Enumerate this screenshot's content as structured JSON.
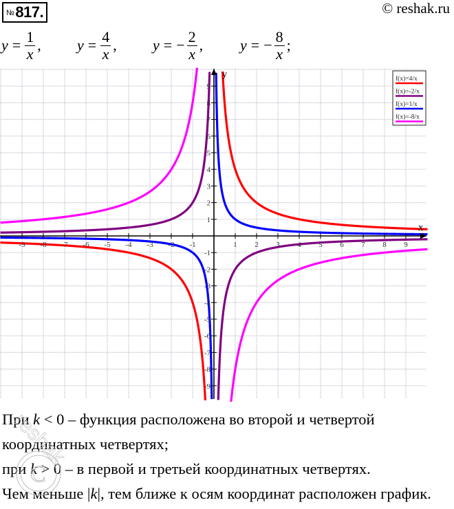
{
  "header": {
    "number_prefix": "№",
    "number": "817.",
    "copyright": "© reshak.ru"
  },
  "formulas": [
    {
      "lhs": "y",
      "sign": "",
      "numerator": "1",
      "denominator": "x",
      "sep": ","
    },
    {
      "lhs": "y",
      "sign": "",
      "numerator": "4",
      "denominator": "x",
      "sep": ","
    },
    {
      "lhs": "y",
      "sign": "−",
      "numerator": "2",
      "denominator": "x",
      "sep": ","
    },
    {
      "lhs": "y",
      "sign": "−",
      "numerator": "8",
      "denominator": "x",
      "sep": ";"
    }
  ],
  "chart_data": {
    "type": "line",
    "title": "",
    "xlabel": "x",
    "ylabel": "y",
    "xlim": [
      -10,
      10
    ],
    "ylim": [
      -10,
      10
    ],
    "grid": true,
    "legend_position": "top-right",
    "x_ticks": [
      -9,
      -8,
      -7,
      -6,
      -5,
      -4,
      -3,
      -2,
      -1,
      1,
      2,
      3,
      4,
      5,
      6,
      7,
      8,
      9
    ],
    "y_ticks": [
      -9,
      -8,
      -7,
      -6,
      -5,
      -4,
      -3,
      -2,
      -1,
      1,
      2,
      3,
      4,
      5,
      6,
      7,
      8,
      9
    ],
    "x_tick_labels": [
      "-9",
      "-8",
      "-7",
      "-6",
      "-5",
      "-4",
      "-3",
      "-2",
      "-1",
      "1",
      "2",
      "3",
      "4",
      "5",
      "6",
      "7",
      "8",
      "9"
    ],
    "y_tick_labels": [
      "-9",
      "-8",
      "-7",
      "-6",
      "-5",
      "-4",
      "-3",
      "-2",
      "-1",
      "1",
      "2",
      "3",
      "4",
      "5",
      "6",
      "7",
      "8",
      "9"
    ],
    "series": [
      {
        "name": "f(x)=4/x",
        "k": 4,
        "color": "#ff0000",
        "x": [
          -10,
          -8,
          -5,
          -4,
          -2,
          -1,
          -0.5,
          0.5,
          1,
          2,
          4,
          5,
          8,
          10
        ],
        "values": [
          -0.4,
          -0.5,
          -0.8,
          -1,
          -2,
          -4,
          -8,
          8,
          4,
          2,
          1,
          0.8,
          0.5,
          0.4
        ]
      },
      {
        "name": "f(x)=-2/x",
        "k": -2,
        "color": "#800080",
        "x": [
          -10,
          -8,
          -5,
          -4,
          -2,
          -1,
          -0.5,
          -0.25,
          0.25,
          0.5,
          1,
          2,
          4,
          5,
          8,
          10
        ],
        "values": [
          0.2,
          0.25,
          0.4,
          0.5,
          1,
          2,
          4,
          8,
          -8,
          -4,
          -2,
          -1,
          -0.5,
          -0.4,
          -0.25,
          -0.2
        ]
      },
      {
        "name": "f(x)=1/x",
        "k": 1,
        "color": "#0000ff",
        "x": [
          -10,
          -5,
          -2,
          -1,
          -0.5,
          -0.125,
          0.125,
          0.5,
          1,
          2,
          5,
          10
        ],
        "values": [
          -0.1,
          -0.2,
          -0.5,
          -1,
          -2,
          -8,
          8,
          2,
          1,
          0.5,
          0.2,
          0.1
        ]
      },
      {
        "name": "f(x)=-8/x",
        "k": -8,
        "color": "#ff00ff",
        "x": [
          -10,
          -8,
          -5,
          -4,
          -2,
          -1,
          1,
          2,
          4,
          5,
          8,
          10
        ],
        "values": [
          0.8,
          1,
          1.6,
          2,
          4,
          8,
          -8,
          -4,
          -2,
          -1.6,
          -1,
          -0.8
        ]
      }
    ]
  },
  "conclusion": {
    "line1_a": "При ",
    "line1_k": "k",
    "line1_b": " < 0 – функция расположена во второй и четвертой",
    "line2": "координатных четвертях;",
    "line3_a": "при ",
    "line3_k": "k",
    "line3_b": " > 0 – в первой и третьей координатных четвертях.",
    "line4_a": "Чем меньше |",
    "line4_k": "k",
    "line4_b": "|, тем ближе к осям координат расположен график."
  }
}
